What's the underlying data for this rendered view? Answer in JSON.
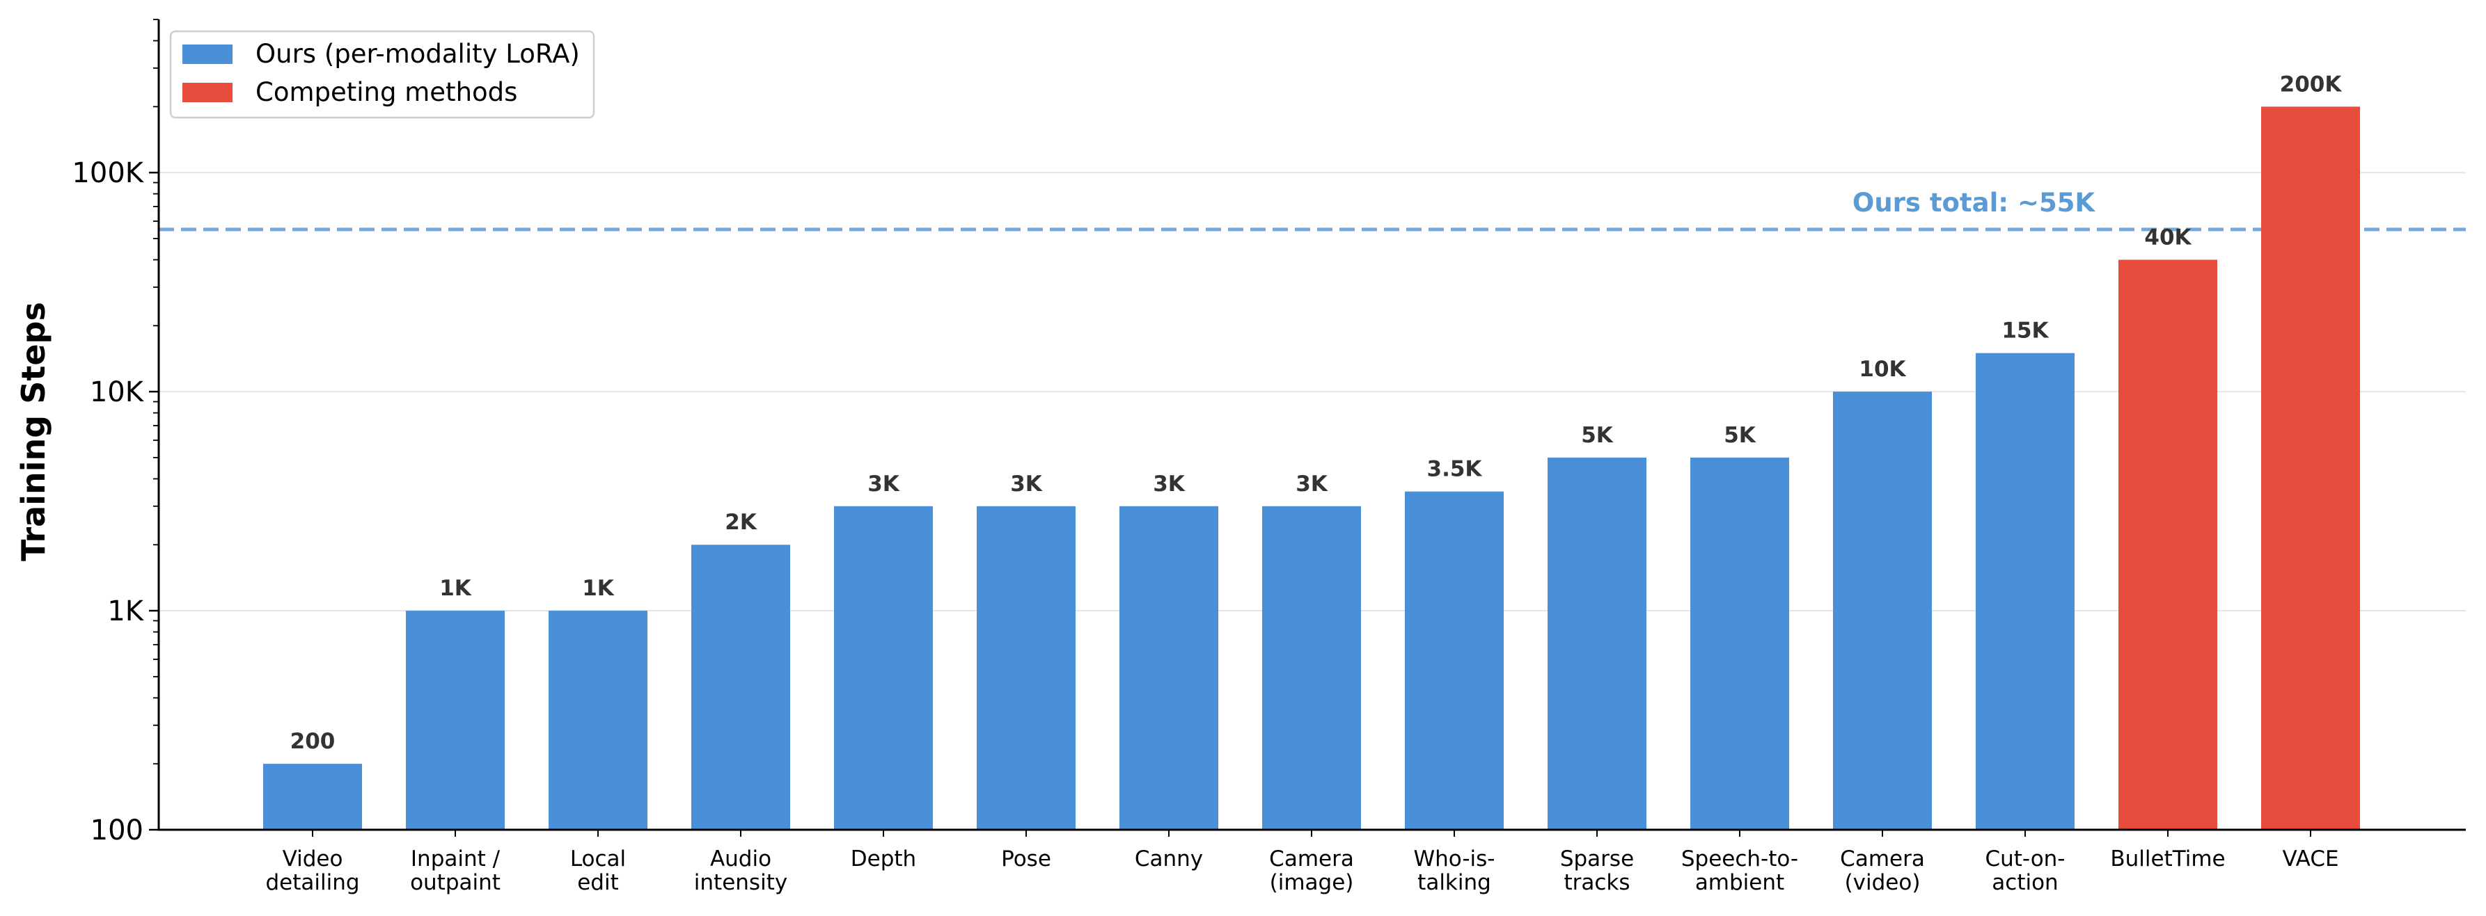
{
  "chart_data": {
    "type": "bar",
    "ylabel": "Training Steps",
    "xlabel": "",
    "yscale": "log",
    "ylim": [
      100,
      500000
    ],
    "yticks": [
      {
        "value": 100,
        "label": "100"
      },
      {
        "value": 1000,
        "label": "1K"
      },
      {
        "value": 10000,
        "label": "10K"
      },
      {
        "value": 100000,
        "label": "100K"
      }
    ],
    "grid": "horizontal major",
    "categories": [
      [
        "Video",
        "detailing"
      ],
      [
        "Inpaint /",
        "outpaint"
      ],
      [
        "Local",
        "edit"
      ],
      [
        "Audio",
        "intensity"
      ],
      [
        "Depth"
      ],
      [
        "Pose"
      ],
      [
        "Canny"
      ],
      [
        "Camera",
        "(image)"
      ],
      [
        "Who-is-",
        "talking"
      ],
      [
        "Sparse",
        "tracks"
      ],
      [
        "Speech-to-",
        "ambient"
      ],
      [
        "Camera",
        "(video)"
      ],
      [
        "Cut-on-",
        "action"
      ],
      [
        "BulletTime"
      ],
      [
        "VACE"
      ]
    ],
    "values": [
      200,
      1000,
      1000,
      2000,
      3000,
      3000,
      3000,
      3000,
      3500,
      5000,
      5000,
      10000,
      15000,
      40000,
      200000
    ],
    "value_labels": [
      "200",
      "1K",
      "1K",
      "2K",
      "3K",
      "3K",
      "3K",
      "3K",
      "3.5K",
      "5K",
      "5K",
      "10K",
      "15K",
      "40K",
      "200K"
    ],
    "series_group": [
      "ours",
      "ours",
      "ours",
      "ours",
      "ours",
      "ours",
      "ours",
      "ours",
      "ours",
      "ours",
      "ours",
      "ours",
      "ours",
      "competing",
      "competing"
    ],
    "legend": {
      "position": "top-left",
      "entries": [
        {
          "key": "ours",
          "label": "Ours (per-modality LoRA)",
          "color": "#4a90d9"
        },
        {
          "key": "competing",
          "label": "Competing methods",
          "color": "#e84c3d"
        }
      ]
    },
    "reference_line": {
      "value": 55000,
      "label": "Ours total: ~55K",
      "color": "#5b9bd5",
      "style": "dashed"
    }
  }
}
